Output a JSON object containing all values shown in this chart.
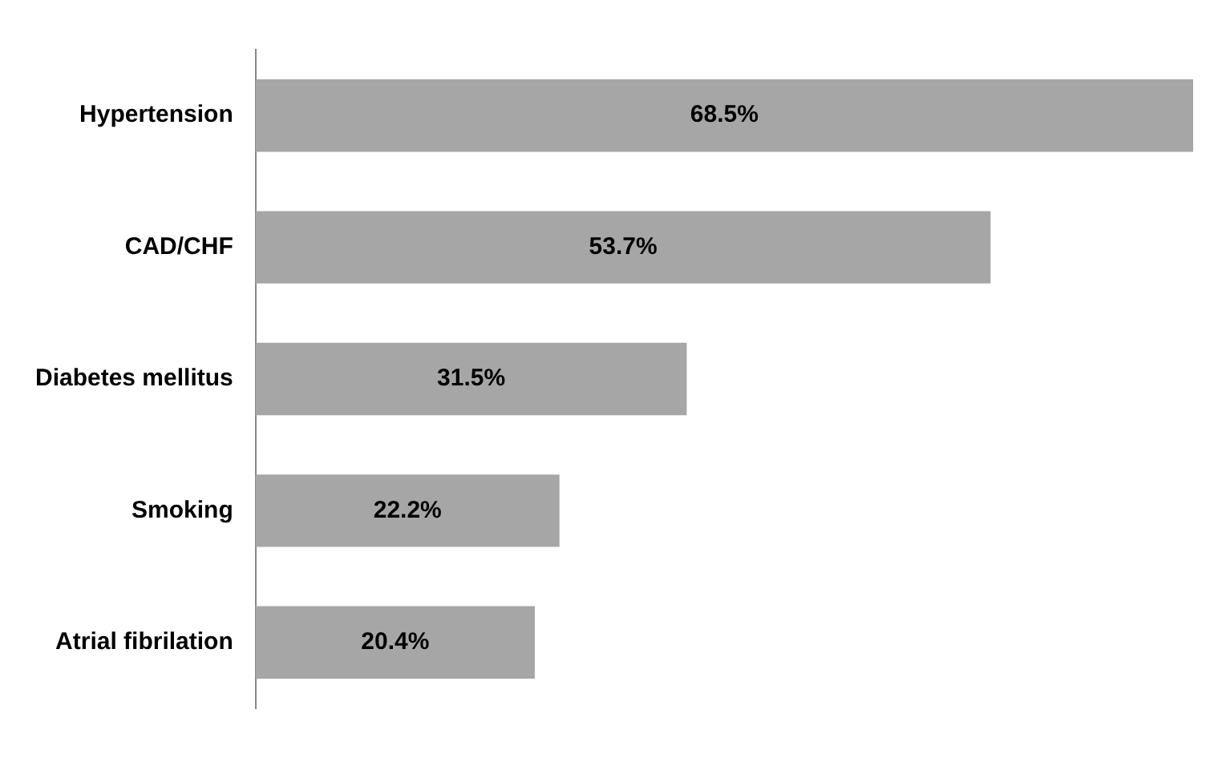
{
  "chart_data": {
    "type": "bar",
    "orientation": "horizontal",
    "categories": [
      "Hypertension",
      "CAD/CHF",
      "Diabetes mellitus",
      "Smoking",
      "Atrial fibrilation"
    ],
    "values": [
      68.5,
      53.7,
      31.5,
      22.2,
      20.4
    ],
    "value_labels": [
      "68.5%",
      "53.7%",
      "31.5%",
      "22.2%",
      "20.4%"
    ],
    "color": "#a6a6a6",
    "grid": false,
    "legend": false
  }
}
